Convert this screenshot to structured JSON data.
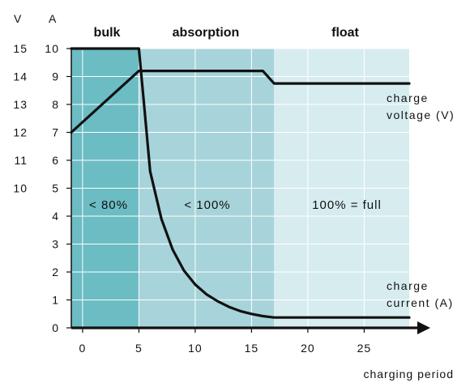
{
  "chart_data": {
    "type": "line",
    "xlabel": "charging period",
    "x_range": [
      -1,
      29
    ],
    "x_ticks": [
      0,
      5,
      10,
      15,
      20,
      25
    ],
    "y_left_label": "V",
    "y_left_ticks": [
      15,
      14,
      13,
      12,
      11,
      10
    ],
    "y_right_label": "A",
    "y_ticks": [
      10,
      9,
      8,
      7,
      6,
      5,
      4,
      3,
      2,
      1,
      0
    ],
    "ylim": [
      0,
      10
    ],
    "grid": true,
    "phases": [
      {
        "name": "bulk",
        "x_start": -1,
        "x_end": 5,
        "level": "< 80%",
        "color": "#6cbcc4"
      },
      {
        "name": "absorption",
        "x_start": 5,
        "x_end": 17,
        "level": "< 100%",
        "color": "#a7d4da"
      },
      {
        "name": "float",
        "x_start": 17,
        "x_end": 29,
        "level": "100%  =  full",
        "color": "#d7ecef"
      }
    ],
    "series": [
      {
        "name": "charge voltage (V)",
        "label_lines": [
          "charge",
          "voltage (V)"
        ],
        "x": [
          -1,
          5,
          16,
          17,
          29
        ],
        "y": [
          7,
          9.2,
          9.2,
          8.75,
          8.75
        ]
      },
      {
        "name": "charge current (A)",
        "label_lines": [
          "charge",
          "current (A)"
        ],
        "x": [
          -1,
          5,
          5.5,
          6,
          7,
          8,
          9,
          10,
          11,
          12,
          13,
          14,
          15,
          16,
          17,
          29
        ],
        "y": [
          10,
          10,
          7.8,
          5.6,
          3.9,
          2.8,
          2.05,
          1.55,
          1.2,
          0.95,
          0.75,
          0.6,
          0.5,
          0.42,
          0.37,
          0.37
        ]
      }
    ],
    "line_color": "#111111"
  }
}
